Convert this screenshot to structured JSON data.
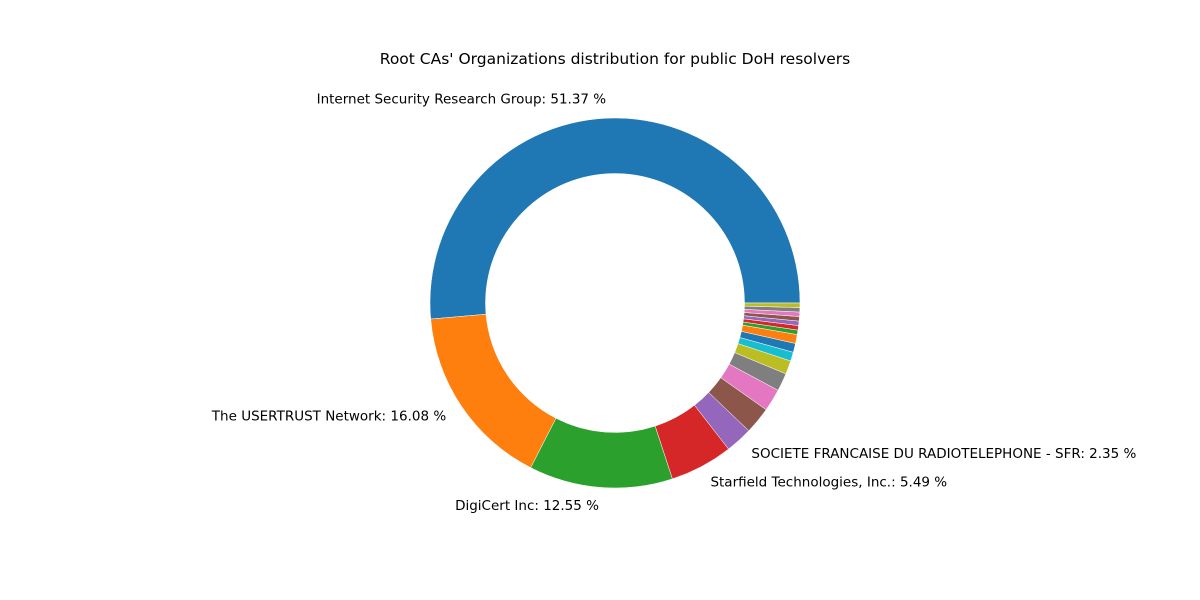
{
  "chart_data": {
    "type": "pie",
    "variant": "donut",
    "title": "Root CAs' Organizations distribution for public DoH resolvers",
    "start_angle_deg": 0,
    "direction": "counterclockwise",
    "slices": [
      {
        "label": "Internet Security Research Group: 51.37 %",
        "value": 51.37,
        "color": "#1f77b4"
      },
      {
        "label": "The USERTRUST Network: 16.08 %",
        "value": 16.08,
        "color": "#ff7f0e"
      },
      {
        "label": "DigiCert Inc: 12.55 %",
        "value": 12.55,
        "color": "#2ca02c"
      },
      {
        "label": "Starfield Technologies, Inc.: 5.49 %",
        "value": 5.49,
        "color": "#d62728"
      },
      {
        "label": "SOCIETE FRANCAISE DU RADIOTELEPHONE - SFR: 2.35 %",
        "value": 2.35,
        "color": "#9467bd"
      },
      {
        "label": "",
        "value": 2.35,
        "color": "#8c564b"
      },
      {
        "label": "",
        "value": 1.96,
        "color": "#e377c2"
      },
      {
        "label": "",
        "value": 1.57,
        "color": "#7f7f7f"
      },
      {
        "label": "",
        "value": 1.18,
        "color": "#bcbd22"
      },
      {
        "label": "",
        "value": 0.78,
        "color": "#17becf"
      },
      {
        "label": "",
        "value": 0.78,
        "color": "#1f77b4"
      },
      {
        "label": "",
        "value": 0.78,
        "color": "#ff7f0e"
      },
      {
        "label": "",
        "value": 0.39,
        "color": "#2ca02c"
      },
      {
        "label": "",
        "value": 0.39,
        "color": "#d62728"
      },
      {
        "label": "",
        "value": 0.39,
        "color": "#9467bd"
      },
      {
        "label": "",
        "value": 0.39,
        "color": "#8c564b"
      },
      {
        "label": "",
        "value": 0.39,
        "color": "#e377c2"
      },
      {
        "label": "",
        "value": 0.39,
        "color": "#7f7f7f"
      },
      {
        "label": "",
        "value": 0.39,
        "color": "#bcbd22"
      }
    ]
  }
}
